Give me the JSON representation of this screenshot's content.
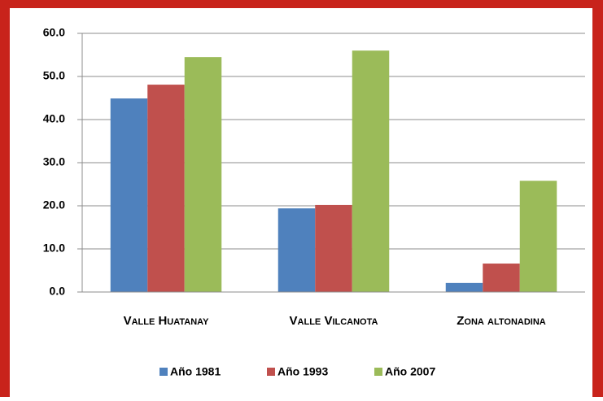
{
  "chart_data": {
    "type": "bar",
    "categories": [
      "Valle Huatanay",
      "Valle Vilcanota",
      "Zona altonadina"
    ],
    "series": [
      {
        "name": "Año 1981",
        "color": "#4f81bd",
        "values": [
          44.9,
          19.4,
          2.1
        ]
      },
      {
        "name": "Año 1993",
        "color": "#c0504d",
        "values": [
          48.1,
          20.2,
          6.6
        ]
      },
      {
        "name": "Año 2007",
        "color": "#9bbb59",
        "values": [
          54.5,
          56.0,
          25.8
        ]
      }
    ],
    "ylim": [
      0,
      60
    ],
    "yticks": [
      {
        "value": 0,
        "label": "0.0"
      },
      {
        "value": 10,
        "label": "10.0"
      },
      {
        "value": 20,
        "label": "20.0"
      },
      {
        "value": 30,
        "label": "30.0"
      },
      {
        "value": 40,
        "label": "40.0"
      },
      {
        "value": 50,
        "label": "50.0"
      },
      {
        "value": 60,
        "label": "60.0"
      }
    ],
    "grid": true,
    "legend": "bottom"
  }
}
